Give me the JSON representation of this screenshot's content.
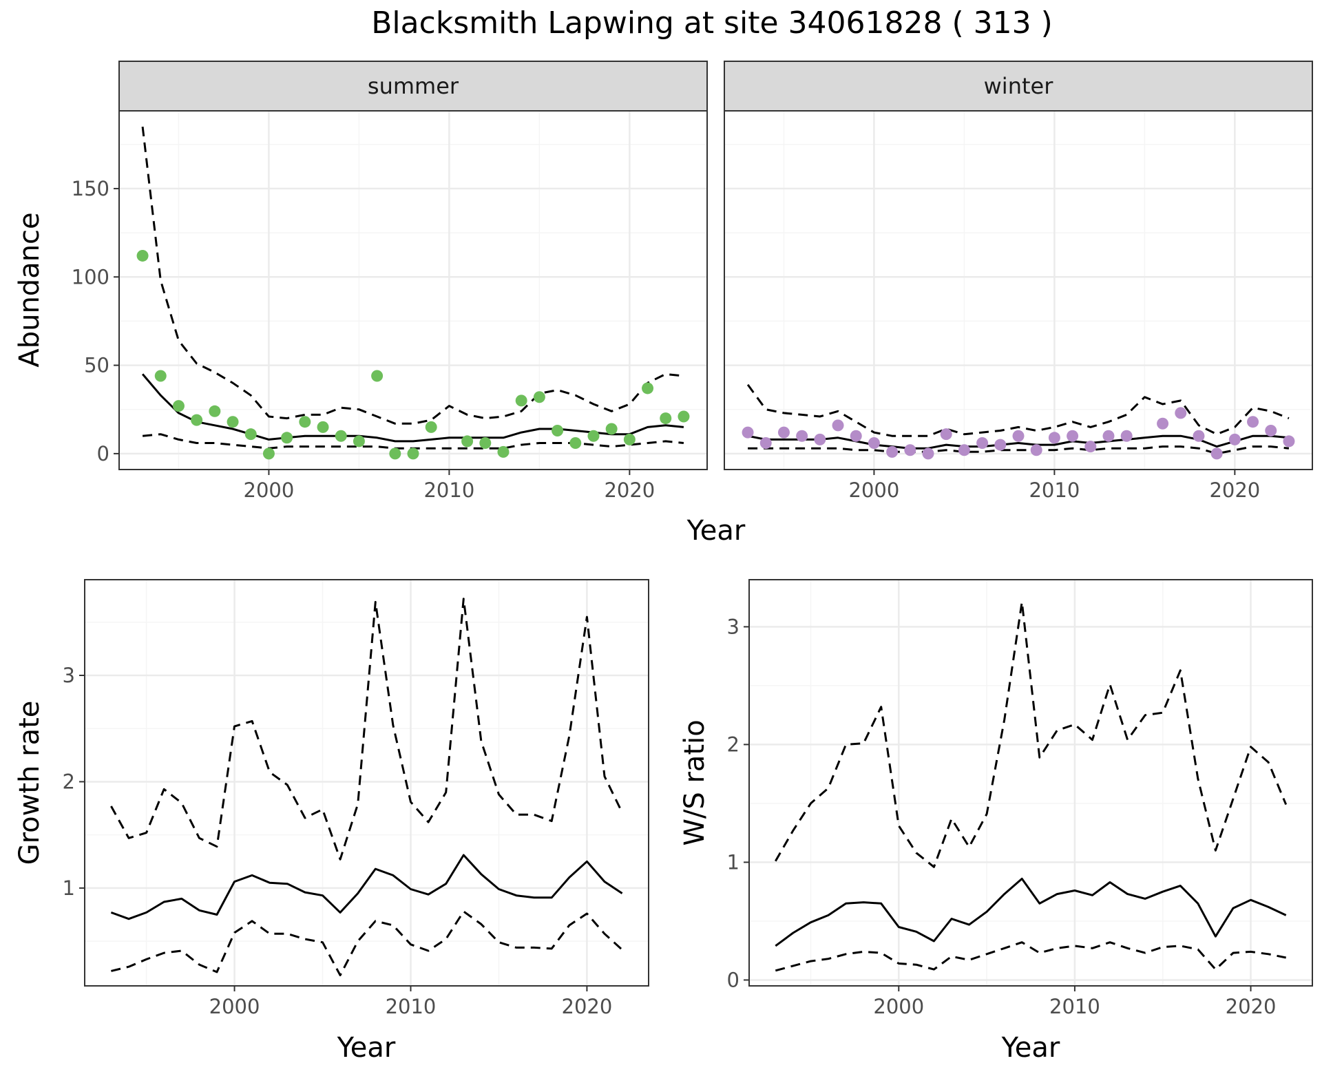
{
  "title": "Blacksmith Lapwing at site 34061828 ( 313 )",
  "colors": {
    "summer_points": "#6DBE5A",
    "winter_points": "#B48CC8",
    "lines": "#000000",
    "grid_major": "#EBEBEB",
    "grid_minor": "#F5F5F5",
    "strip_fill": "#D9D9D9",
    "panel_border": "#333333"
  },
  "chart_data": [
    {
      "type": "scatter",
      "panel": "summer",
      "strip_label": "summer",
      "ylabel": "Abundance",
      "xlabel": "Year",
      "xlim": [
        1991.7,
        2024.3
      ],
      "ylim": [
        -9,
        194
      ],
      "xticks": [
        2000,
        2010,
        2020
      ],
      "yticks": [
        0,
        50,
        100,
        150
      ],
      "grid": true,
      "points": {
        "x": [
          1993,
          1994,
          1995,
          1996,
          1997,
          1998,
          1999,
          2000,
          2001,
          2002,
          2003,
          2004,
          2005,
          2006,
          2007,
          2008,
          2009,
          2010,
          2011,
          2012,
          2013,
          2014,
          2015,
          2016,
          2017,
          2018,
          2019,
          2020,
          2021,
          2022,
          2023
        ],
        "y": [
          112,
          44,
          27,
          19,
          24,
          18,
          11,
          0,
          9,
          18,
          15,
          10,
          7,
          44,
          0,
          0,
          15,
          null,
          7,
          6,
          1,
          30,
          32,
          13,
          6,
          10,
          14,
          8,
          37,
          20,
          21
        ]
      },
      "series": [
        {
          "style": "solid",
          "x": [
            1993,
            1994,
            1995,
            1996,
            1997,
            1998,
            1999,
            2000,
            2001,
            2002,
            2003,
            2004,
            2005,
            2006,
            2007,
            2008,
            2009,
            2010,
            2011,
            2012,
            2013,
            2014,
            2015,
            2016,
            2017,
            2018,
            2019,
            2020,
            2021,
            2022,
            2023
          ],
          "values": [
            45,
            33,
            23,
            18,
            16,
            14,
            11,
            8,
            9,
            10,
            10,
            10,
            10,
            9,
            7,
            7,
            8,
            9,
            9,
            9,
            9,
            12,
            14,
            14,
            13,
            12,
            11,
            11,
            15,
            16,
            15
          ]
        },
        {
          "style": "dashed",
          "x": [
            1993,
            1994,
            1995,
            1996,
            1997,
            1998,
            1999,
            2000,
            2001,
            2002,
            2003,
            2004,
            2005,
            2006,
            2007,
            2008,
            2009,
            2010,
            2011,
            2012,
            2013,
            2014,
            2015,
            2016,
            2017,
            2018,
            2019,
            2020,
            2021,
            2022,
            2023
          ],
          "values": [
            185,
            98,
            64,
            51,
            46,
            40,
            33,
            21,
            20,
            22,
            22,
            26,
            25,
            21,
            17,
            17,
            19,
            27,
            22,
            20,
            21,
            24,
            34,
            36,
            33,
            28,
            24,
            28,
            40,
            45,
            44
          ]
        },
        {
          "style": "dashed",
          "x": [
            1993,
            1994,
            1995,
            1996,
            1997,
            1998,
            1999,
            2000,
            2001,
            2002,
            2003,
            2004,
            2005,
            2006,
            2007,
            2008,
            2009,
            2010,
            2011,
            2012,
            2013,
            2014,
            2015,
            2016,
            2017,
            2018,
            2019,
            2020,
            2021,
            2022,
            2023
          ],
          "values": [
            10,
            11,
            8,
            6,
            6,
            5,
            4,
            3,
            4,
            4,
            4,
            4,
            4,
            4,
            3,
            3,
            3,
            3,
            3,
            3,
            3,
            5,
            6,
            6,
            6,
            5,
            4,
            5,
            6,
            7,
            6
          ]
        }
      ]
    },
    {
      "type": "scatter",
      "panel": "winter",
      "strip_label": "winter",
      "xlabel": "Year",
      "xlim": [
        1991.7,
        2024.3
      ],
      "ylim": [
        -9,
        194
      ],
      "xticks": [
        2000,
        2010,
        2020
      ],
      "yticks": [
        0,
        50,
        100,
        150
      ],
      "grid": true,
      "points": {
        "x": [
          1993,
          1994,
          1995,
          1996,
          1997,
          1998,
          1999,
          2000,
          2001,
          2002,
          2003,
          2004,
          2005,
          2006,
          2007,
          2008,
          2009,
          2010,
          2011,
          2012,
          2013,
          2014,
          2015,
          2016,
          2017,
          2018,
          2019,
          2020,
          2021,
          2022,
          2023
        ],
        "y": [
          12,
          6,
          12,
          10,
          8,
          16,
          10,
          6,
          1,
          2,
          0,
          11,
          2,
          6,
          5,
          10,
          2,
          9,
          10,
          4,
          10,
          10,
          null,
          17,
          23,
          10,
          0,
          8,
          18,
          13,
          7
        ]
      },
      "series": [
        {
          "style": "solid",
          "x": [
            1993,
            1994,
            1995,
            1996,
            1997,
            1998,
            1999,
            2000,
            2001,
            2002,
            2003,
            2004,
            2005,
            2006,
            2007,
            2008,
            2009,
            2010,
            2011,
            2012,
            2013,
            2014,
            2015,
            2016,
            2017,
            2018,
            2019,
            2020,
            2021,
            2022,
            2023
          ],
          "values": [
            10,
            8,
            8,
            8,
            8,
            9,
            7,
            5,
            4,
            3,
            3,
            5,
            4,
            4,
            5,
            6,
            5,
            5,
            7,
            6,
            7,
            8,
            9,
            10,
            10,
            8,
            4,
            7,
            10,
            10,
            9
          ]
        },
        {
          "style": "dashed",
          "x": [
            1993,
            1994,
            1995,
            1996,
            1997,
            1998,
            1999,
            2000,
            2001,
            2002,
            2003,
            2004,
            2005,
            2006,
            2007,
            2008,
            2009,
            2010,
            2011,
            2012,
            2013,
            2014,
            2015,
            2016,
            2017,
            2018,
            2019,
            2020,
            2021,
            2022,
            2023
          ],
          "values": [
            39,
            25,
            23,
            22,
            21,
            24,
            18,
            12,
            10,
            10,
            10,
            14,
            11,
            12,
            13,
            15,
            13,
            15,
            18,
            15,
            18,
            22,
            32,
            28,
            30,
            16,
            11,
            15,
            26,
            24,
            20
          ]
        },
        {
          "style": "dashed",
          "x": [
            1993,
            1994,
            1995,
            1996,
            1997,
            1998,
            1999,
            2000,
            2001,
            2002,
            2003,
            2004,
            2005,
            2006,
            2007,
            2008,
            2009,
            2010,
            2011,
            2012,
            2013,
            2014,
            2015,
            2016,
            2017,
            2018,
            2019,
            2020,
            2021,
            2022,
            2023
          ],
          "values": [
            3,
            3,
            3,
            3,
            3,
            3,
            2,
            2,
            1,
            1,
            1,
            2,
            1,
            1,
            2,
            2,
            2,
            2,
            3,
            2,
            3,
            3,
            3,
            4,
            4,
            3,
            0,
            2,
            4,
            4,
            3
          ]
        }
      ]
    },
    {
      "type": "line",
      "panel": "growth",
      "xlabel": "Year",
      "ylabel": "Growth rate",
      "xlim": [
        1991.5,
        2023.5
      ],
      "ylim": [
        0.08,
        3.9
      ],
      "xticks": [
        2000,
        2010,
        2020
      ],
      "yticks": [
        1,
        2,
        3
      ],
      "grid": true,
      "series": [
        {
          "style": "solid",
          "x": [
            1993,
            1994,
            1995,
            1996,
            1997,
            1998,
            1999,
            2000,
            2001,
            2002,
            2003,
            2004,
            2005,
            2006,
            2007,
            2008,
            2009,
            2010,
            2011,
            2012,
            2013,
            2014,
            2015,
            2016,
            2017,
            2018,
            2019,
            2020,
            2021,
            2022
          ],
          "values": [
            0.77,
            0.71,
            0.77,
            0.87,
            0.9,
            0.79,
            0.75,
            1.06,
            1.12,
            1.05,
            1.04,
            0.96,
            0.93,
            0.77,
            0.95,
            1.18,
            1.12,
            0.99,
            0.94,
            1.04,
            1.31,
            1.13,
            0.99,
            0.93,
            0.91,
            0.91,
            1.1,
            1.25,
            1.06,
            0.95
          ]
        },
        {
          "style": "dashed",
          "x": [
            1993,
            1994,
            1995,
            1996,
            1997,
            1998,
            1999,
            2000,
            2001,
            2002,
            2003,
            2004,
            2005,
            2006,
            2007,
            2008,
            2009,
            2010,
            2011,
            2012,
            2013,
            2014,
            2015,
            2016,
            2017,
            2018,
            2019,
            2020,
            2021,
            2022
          ],
          "values": [
            1.77,
            1.47,
            1.52,
            1.93,
            1.8,
            1.47,
            1.39,
            2.52,
            2.57,
            2.09,
            1.97,
            1.66,
            1.74,
            1.27,
            1.79,
            3.69,
            2.53,
            1.81,
            1.62,
            1.9,
            3.72,
            2.38,
            1.88,
            1.69,
            1.69,
            1.63,
            2.43,
            3.55,
            2.05,
            1.71
          ]
        },
        {
          "style": "dashed",
          "x": [
            1993,
            1994,
            1995,
            1996,
            1997,
            1998,
            1999,
            2000,
            2001,
            2002,
            2003,
            2004,
            2005,
            2006,
            2007,
            2008,
            2009,
            2010,
            2011,
            2012,
            2013,
            2014,
            2015,
            2016,
            2017,
            2018,
            2019,
            2020,
            2021,
            2022
          ],
          "values": [
            0.22,
            0.26,
            0.33,
            0.39,
            0.41,
            0.28,
            0.21,
            0.58,
            0.69,
            0.57,
            0.57,
            0.52,
            0.49,
            0.18,
            0.5,
            0.69,
            0.65,
            0.47,
            0.41,
            0.52,
            0.78,
            0.66,
            0.49,
            0.44,
            0.44,
            0.43,
            0.65,
            0.76,
            0.57,
            0.42
          ]
        }
      ]
    },
    {
      "type": "line",
      "panel": "ws_ratio",
      "xlabel": "Year",
      "ylabel": "W/S ratio",
      "xlim": [
        1991.5,
        2023.5
      ],
      "ylim": [
        -0.05,
        3.4
      ],
      "xticks": [
        2000,
        2010,
        2020
      ],
      "yticks": [
        0,
        1,
        2,
        3
      ],
      "grid": true,
      "series": [
        {
          "style": "solid",
          "x": [
            1993,
            1994,
            1995,
            1996,
            1997,
            1998,
            1999,
            2000,
            2001,
            2002,
            2003,
            2004,
            2005,
            2006,
            2007,
            2008,
            2009,
            2010,
            2011,
            2012,
            2013,
            2014,
            2015,
            2016,
            2017,
            2018,
            2019,
            2020,
            2021,
            2022
          ],
          "values": [
            0.29,
            0.4,
            0.49,
            0.55,
            0.65,
            0.66,
            0.65,
            0.45,
            0.41,
            0.33,
            0.52,
            0.47,
            0.58,
            0.73,
            0.86,
            0.65,
            0.73,
            0.76,
            0.72,
            0.83,
            0.73,
            0.69,
            0.75,
            0.8,
            0.65,
            0.37,
            0.61,
            0.68,
            0.62,
            0.55
          ]
        },
        {
          "style": "dashed",
          "x": [
            1993,
            1994,
            1995,
            1996,
            1997,
            1998,
            1999,
            2000,
            2001,
            2002,
            2003,
            2004,
            2005,
            2006,
            2007,
            2008,
            2009,
            2010,
            2011,
            2012,
            2013,
            2014,
            2015,
            2016,
            2017,
            2018,
            2019,
            2020,
            2021,
            2022
          ],
          "values": [
            1.01,
            1.27,
            1.5,
            1.63,
            2.0,
            2.01,
            2.32,
            1.31,
            1.08,
            0.96,
            1.37,
            1.13,
            1.41,
            2.21,
            3.21,
            1.89,
            2.12,
            2.17,
            2.04,
            2.51,
            2.04,
            2.25,
            2.27,
            2.63,
            1.71,
            1.1,
            1.54,
            1.98,
            1.85,
            1.49
          ]
        },
        {
          "style": "dashed",
          "x": [
            1993,
            1994,
            1995,
            1996,
            1997,
            1998,
            1999,
            2000,
            2001,
            2002,
            2003,
            2004,
            2005,
            2006,
            2007,
            2008,
            2009,
            2010,
            2011,
            2012,
            2013,
            2014,
            2015,
            2016,
            2017,
            2018,
            2019,
            2020,
            2021,
            2022
          ],
          "values": [
            0.08,
            0.12,
            0.16,
            0.18,
            0.22,
            0.24,
            0.23,
            0.14,
            0.13,
            0.09,
            0.2,
            0.17,
            0.22,
            0.27,
            0.32,
            0.23,
            0.27,
            0.29,
            0.27,
            0.32,
            0.27,
            0.23,
            0.28,
            0.29,
            0.26,
            0.09,
            0.23,
            0.24,
            0.22,
            0.19
          ]
        }
      ]
    }
  ]
}
